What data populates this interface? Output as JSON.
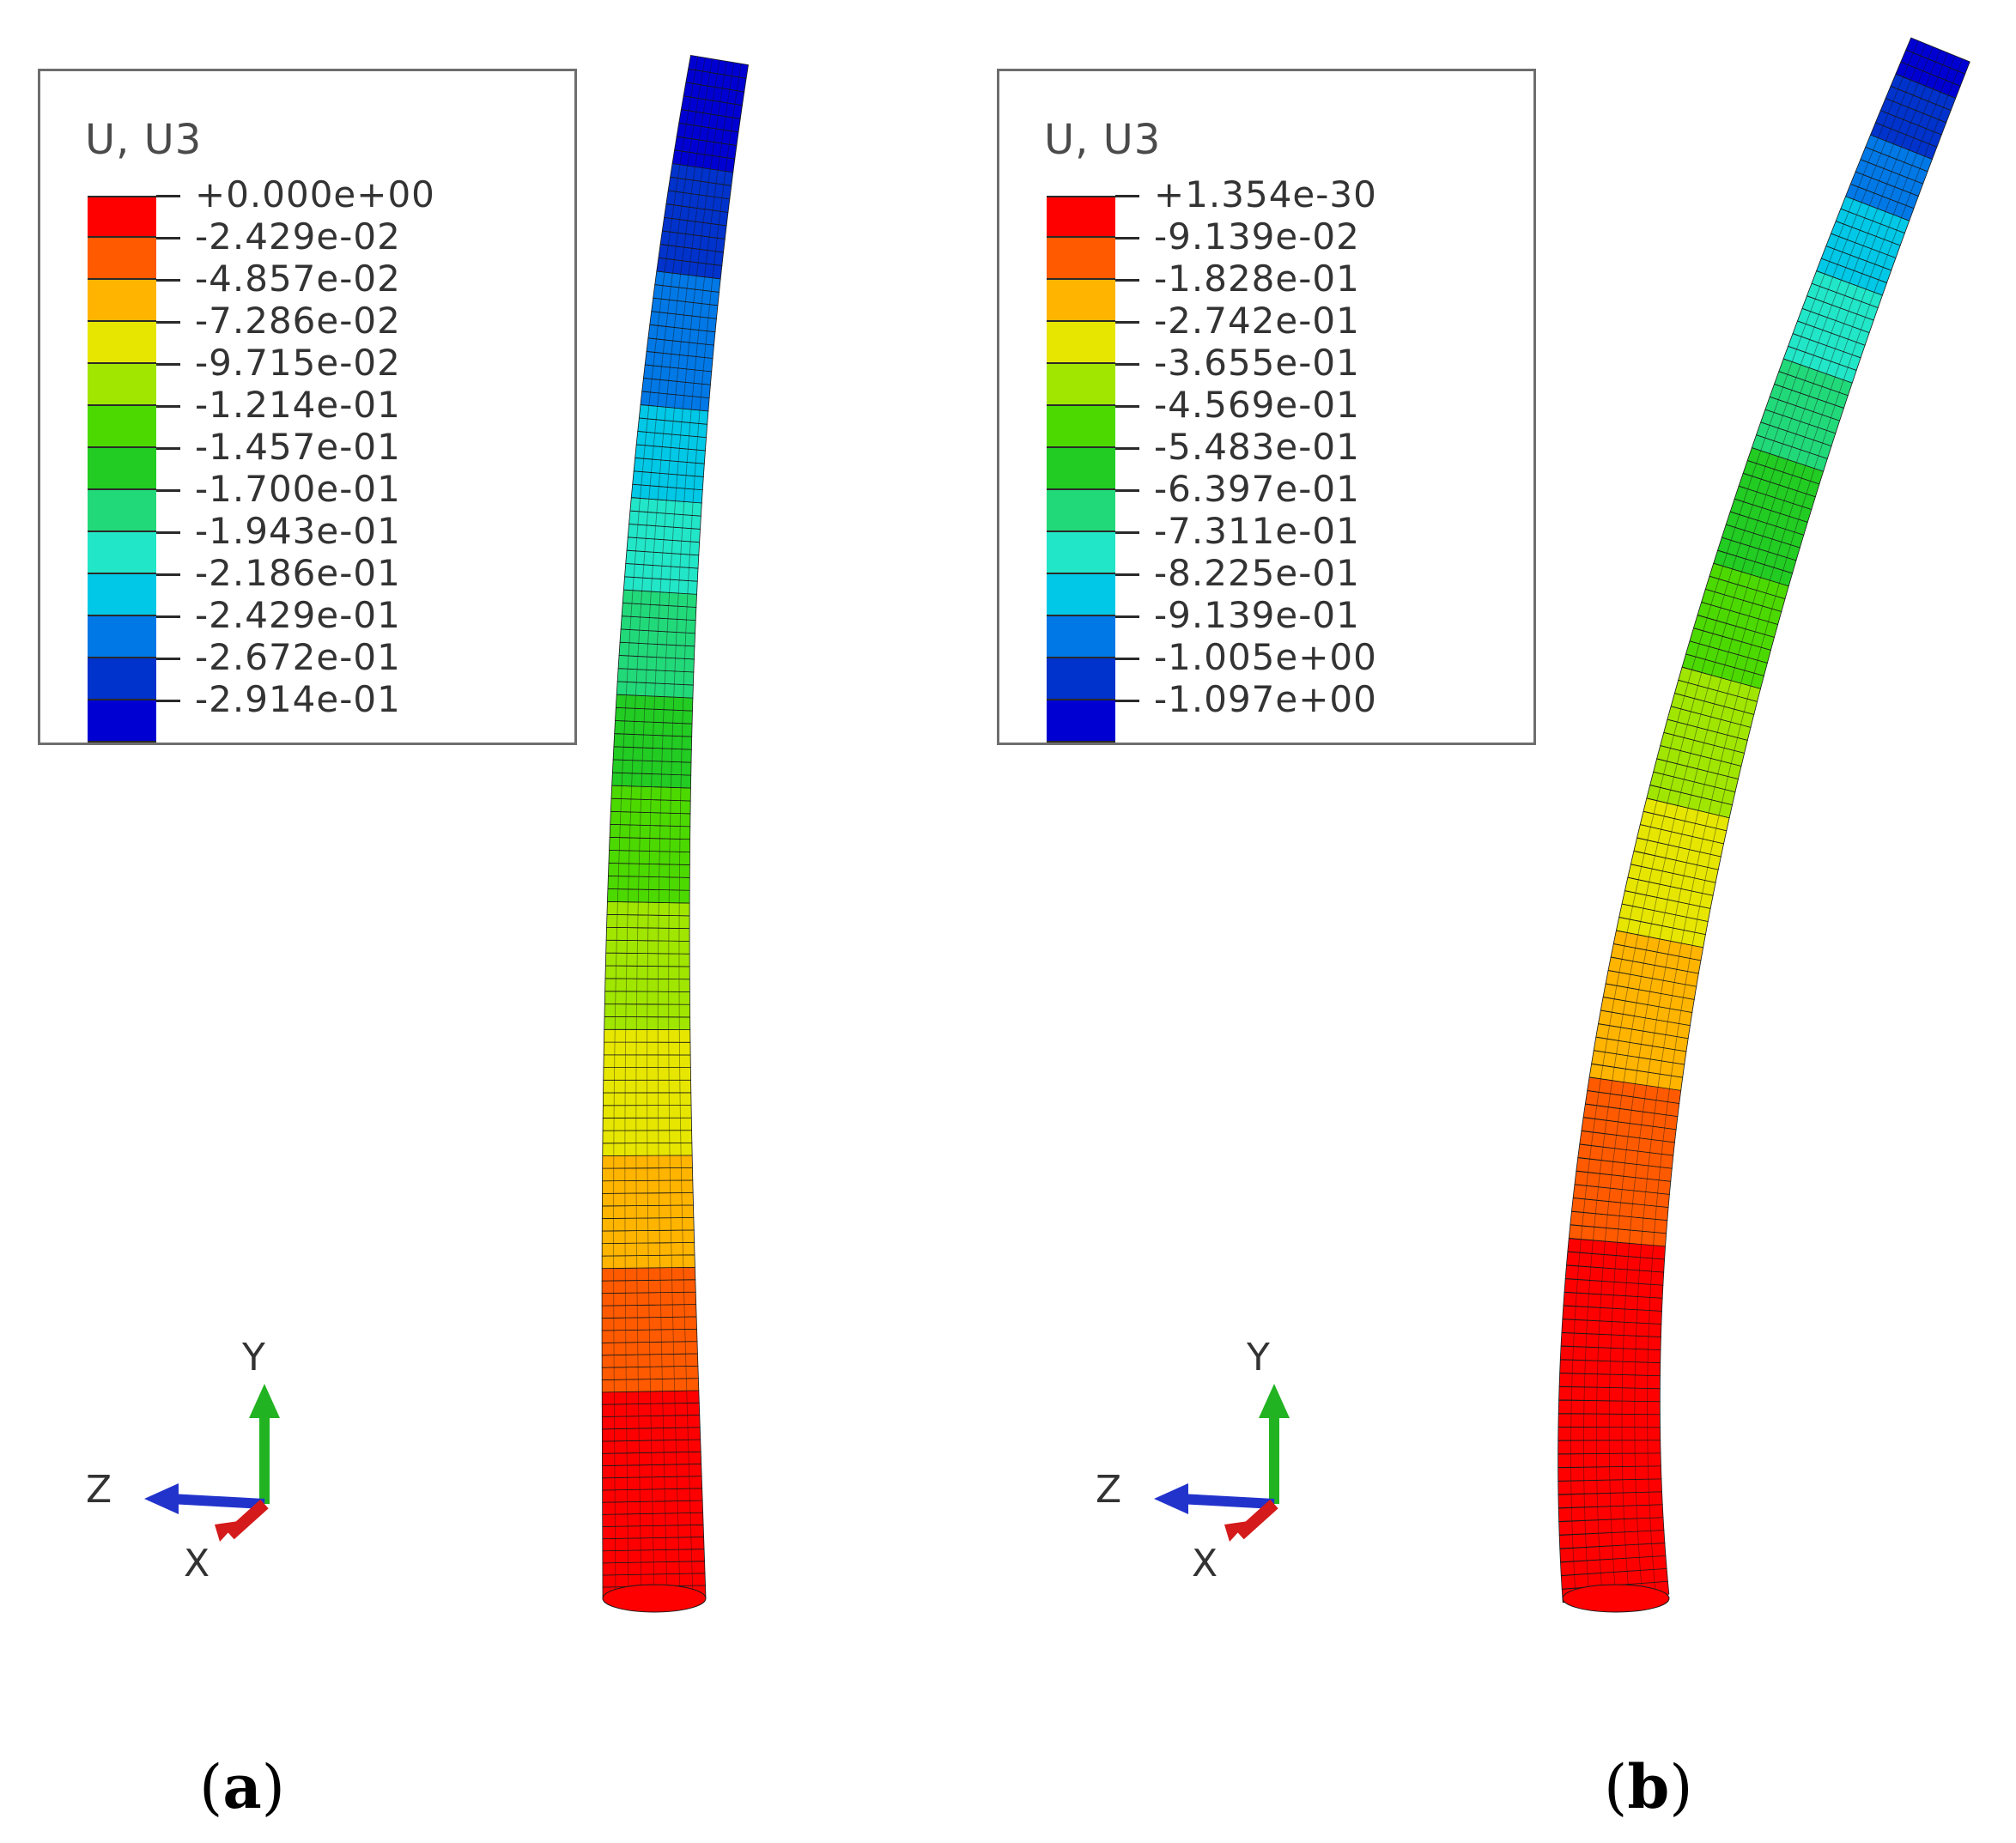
{
  "panels": [
    {
      "id": "a",
      "caption_letter": "a",
      "legend": {
        "title": "U, U3",
        "values": [
          "+0.000e+00",
          "-2.429e-02",
          "-4.857e-02",
          "-7.286e-02",
          "-9.715e-02",
          "-1.214e-01",
          "-1.457e-01",
          "-1.700e-01",
          "-1.943e-01",
          "-2.186e-01",
          "-2.429e-01",
          "-2.672e-01",
          "-2.914e-01"
        ]
      },
      "axes": {
        "y": "Y",
        "z": "Z",
        "x": "X"
      }
    },
    {
      "id": "b",
      "caption_letter": "b",
      "legend": {
        "title": "U, U3",
        "values": [
          "+1.354e-30",
          "-9.139e-02",
          "-1.828e-01",
          "-2.742e-01",
          "-3.655e-01",
          "-4.569e-01",
          "-5.483e-01",
          "-6.397e-01",
          "-7.311e-01",
          "-8.225e-01",
          "-9.139e-01",
          "-1.005e+00",
          "-1.097e+00"
        ]
      },
      "axes": {
        "y": "Y",
        "z": "Z",
        "x": "X"
      }
    }
  ],
  "colormap": [
    "#ff0000",
    "#ff5a00",
    "#ffb400",
    "#e6e600",
    "#a0e600",
    "#4cd900",
    "#22cc22",
    "#22d97a",
    "#22e6c8",
    "#00c8e6",
    "#0078e6",
    "#0032cc",
    "#0000d2"
  ]
}
